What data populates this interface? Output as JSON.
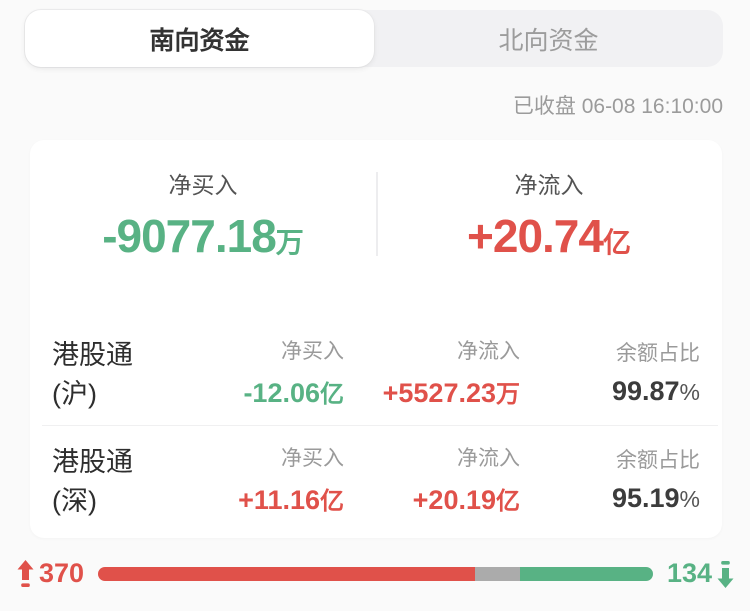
{
  "tabs": [
    {
      "label": "南向资金",
      "active": true
    },
    {
      "label": "北向资金",
      "active": false
    }
  ],
  "status": "已收盘 06-08 16:10:00",
  "summary": {
    "net_buy": {
      "label": "净买入",
      "value": "-9077.18",
      "unit": "万"
    },
    "net_inflow": {
      "label": "净流入",
      "value": "+20.74",
      "unit": "亿"
    }
  },
  "rows": [
    {
      "name": "港股通(沪)",
      "net_buy": {
        "label": "净买入",
        "value": "-12.06",
        "unit": "亿"
      },
      "net_inflow": {
        "label": "净流入",
        "value": "+5527.23",
        "unit": "万"
      },
      "balance": {
        "label": "余额占比",
        "value": "99.87",
        "unit": "%"
      }
    },
    {
      "name": "港股通(深)",
      "net_buy": {
        "label": "净买入",
        "value": "+11.16",
        "unit": "亿"
      },
      "net_inflow": {
        "label": "净流入",
        "value": "+20.19",
        "unit": "亿"
      },
      "balance": {
        "label": "余额占比",
        "value": "95.19",
        "unit": "%"
      }
    }
  ],
  "footer": {
    "up_count": "370",
    "down_count": "134",
    "bar": {
      "up_pct": 68,
      "flat_pct": 8,
      "down_pct": 24
    }
  },
  "colors": {
    "up_red": "#e0514a",
    "down_green": "#58b284",
    "flat_gray": "#ababab"
  },
  "icons": {
    "up_arrow": "up-arrow-with-bar-icon",
    "down_arrow": "down-arrow-with-bar-icon"
  }
}
